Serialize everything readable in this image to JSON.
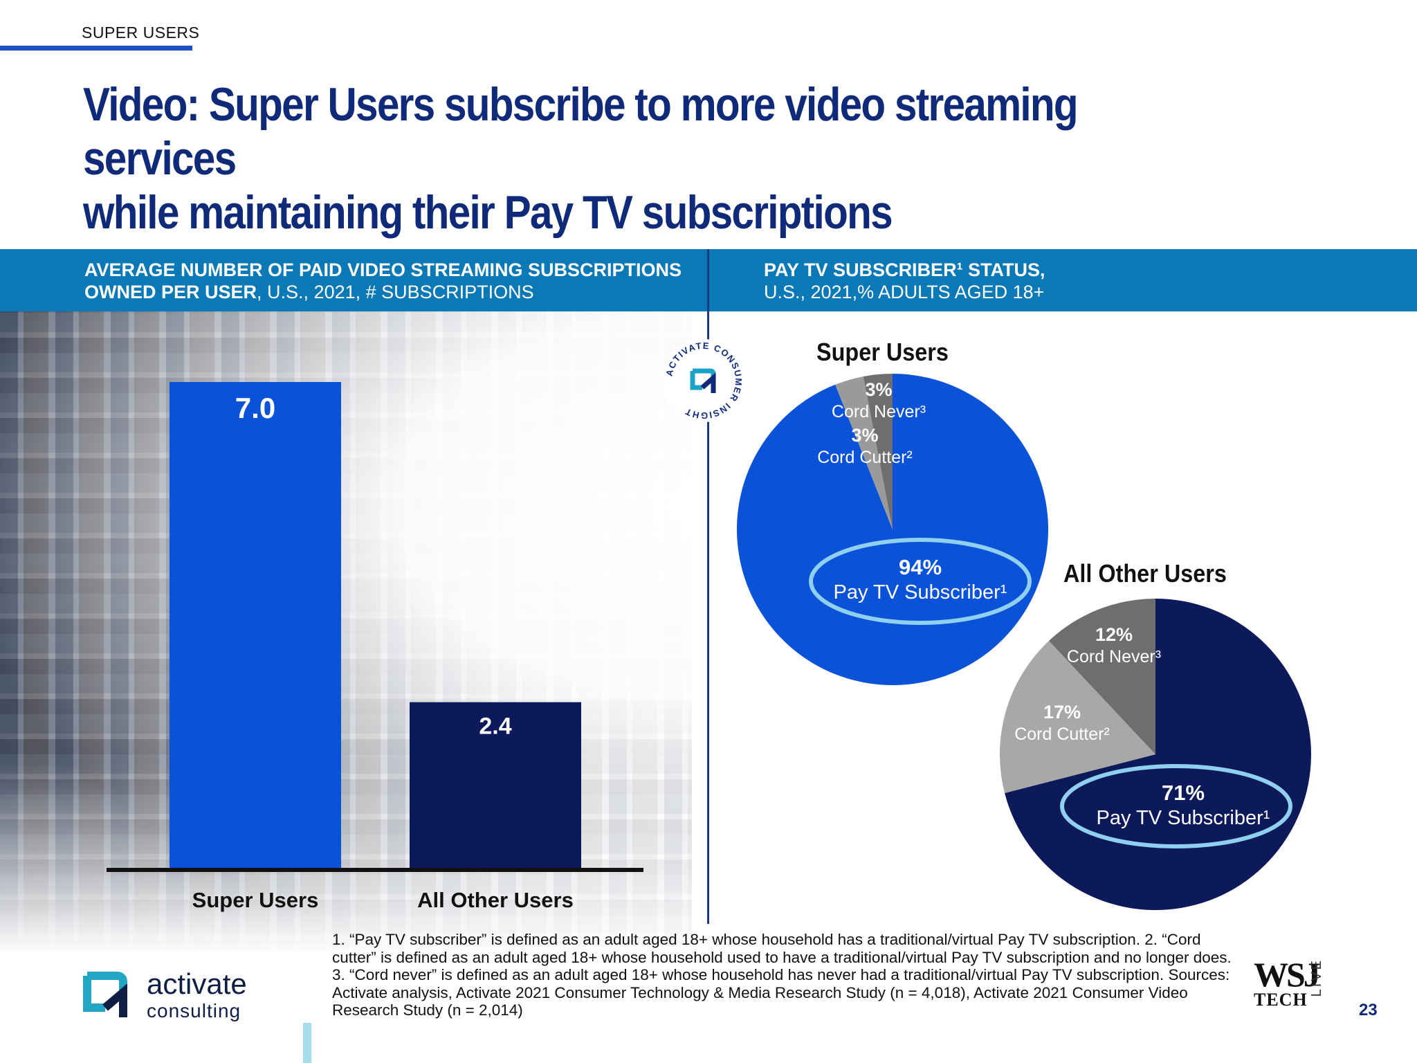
{
  "section_tag": "SUPER USERS",
  "title_line1": "Video: Super Users subscribe to more video streaming services",
  "title_line2": "while maintaining their Pay TV subscriptions",
  "left_header": {
    "bold": "AVERAGE NUMBER OF PAID VIDEO STREAMING SUBSCRIPTIONS OWNED PER USER",
    "rest": ", U.S., 2021, # SUBSCRIPTIONS"
  },
  "right_header": {
    "line1": "PAY TV SUBSCRIBER¹ STATUS,",
    "line2": "U.S., 2021,% ADULTS AGED 18+"
  },
  "badge_text": "ACTIVATE CONSUMER INSIGHT",
  "chart_data": [
    {
      "type": "bar",
      "categories": [
        "Super Users",
        "All Other Users"
      ],
      "values": [
        7.0,
        2.4
      ],
      "value_labels": [
        "7.0",
        "2.4"
      ],
      "colors": [
        "#0a53d9",
        "#0c1a5c"
      ],
      "ylim": [
        0,
        7.0
      ],
      "title": "",
      "xlabel": "",
      "ylabel": ""
    },
    {
      "type": "pie",
      "title": "Super Users",
      "slices": [
        {
          "label": "Pay TV Subscriber¹",
          "pct_label": "94%",
          "value": 94,
          "color": "#0a53d9"
        },
        {
          "label": "Cord Cutter²",
          "pct_label": "3%",
          "value": 3,
          "color": "#9a9a9a"
        },
        {
          "label": "Cord Never³",
          "pct_label": "3%",
          "value": 3,
          "color": "#6e6e6e"
        }
      ]
    },
    {
      "type": "pie",
      "title": "All Other Users",
      "slices": [
        {
          "label": "Pay TV Subscriber¹",
          "pct_label": "71%",
          "value": 71,
          "color": "#0c1a5c"
        },
        {
          "label": "Cord Cutter²",
          "pct_label": "17%",
          "value": 17,
          "color": "#a8a8a8"
        },
        {
          "label": "Cord Never³",
          "pct_label": "12%",
          "value": 12,
          "color": "#6e6e6e"
        }
      ]
    }
  ],
  "footnote": "1. “Pay TV subscriber” is defined as an adult aged 18+ whose household has a traditional/virtual Pay TV subscription.  2. “Cord cutter” is defined as an adult aged 18+ whose household used to have a traditional/virtual Pay TV subscription and no longer does.  3. “Cord never” is defined as an adult aged 18+ whose household has never had a traditional/virtual Pay TV subscription. Sources: Activate analysis, Activate 2021 Consumer Technology & Media Research Study (n = 4,018), Activate 2021 Consumer Video Research Study (n = 2,014)",
  "logo": {
    "name": "activate",
    "sub": "consulting"
  },
  "wsj": {
    "big": "WSJ",
    "tech": "TECH",
    "live": "LIVE"
  },
  "page_number": "23",
  "colors": {
    "accent": "#1f50c8",
    "band": "#0b79b5",
    "highlight_ring": "#8fd0ee"
  }
}
